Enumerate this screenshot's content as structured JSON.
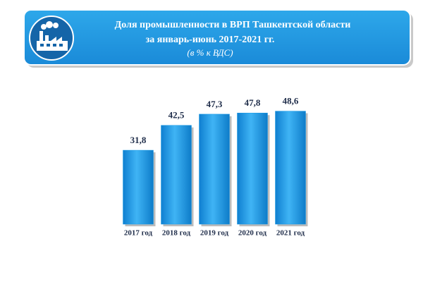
{
  "chart_data": {
    "type": "bar",
    "title": "Доля промышленности в ВРП Ташкентской области",
    "subtitle": "за январь-июнь 2017-2021 гг.",
    "unit_note": "(в % к ВДС)",
    "categories": [
      "2017 год",
      "2018 год",
      "2019 год",
      "2020 год",
      "2021 год"
    ],
    "values": [
      31.8,
      42.5,
      47.3,
      47.8,
      48.6
    ],
    "value_labels": [
      "31,8",
      "42,5",
      "47,3",
      "47,8",
      "48,6"
    ],
    "color": "#1a9be6"
  }
}
